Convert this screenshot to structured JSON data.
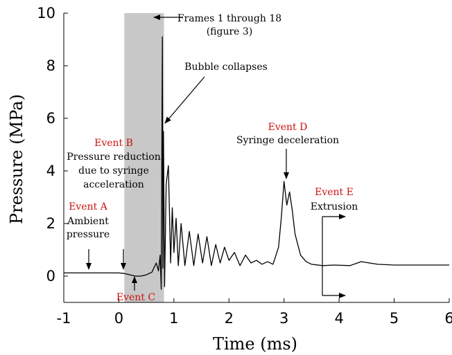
{
  "chart_data": {
    "type": "line",
    "xlabel": "Time (ms)",
    "ylabel": "Pressure (MPa)",
    "xlim": [
      -1,
      6
    ],
    "ylim": [
      -1,
      10
    ],
    "xticks": [
      -1,
      0,
      1,
      2,
      3,
      4,
      5,
      6
    ],
    "yticks": [
      0,
      2,
      4,
      6,
      8,
      10
    ],
    "grid": false,
    "shaded_region": {
      "x": [
        0.1,
        0.82
      ],
      "color": "#c8c8c8"
    },
    "series": [
      {
        "x": [
          -1.0,
          -0.5,
          0.0,
          0.1,
          0.2,
          0.3,
          0.4,
          0.5,
          0.6,
          0.68,
          0.72,
          0.75,
          0.77,
          0.79,
          0.8,
          0.81,
          0.83,
          0.86,
          0.9,
          0.94,
          0.97,
          1.0,
          1.04,
          1.08,
          1.13,
          1.2,
          1.28,
          1.36,
          1.44,
          1.52,
          1.6,
          1.68,
          1.76,
          1.84,
          1.92,
          2.0,
          2.1,
          2.2,
          2.3,
          2.4,
          2.5,
          2.6,
          2.7,
          2.8,
          2.9,
          2.95,
          3.0,
          3.05,
          3.1,
          3.15,
          3.2,
          3.3,
          3.4,
          3.5,
          3.7,
          3.9,
          4.2,
          4.4,
          4.7,
          5.0,
          5.5,
          6.0
        ],
        "y": [
          0.12,
          0.12,
          0.12,
          0.1,
          0.05,
          0.0,
          0.0,
          0.05,
          0.15,
          0.5,
          0.2,
          0.8,
          -0.5,
          9.1,
          0.3,
          5.5,
          -0.4,
          3.5,
          4.2,
          0.5,
          2.6,
          0.9,
          2.2,
          0.4,
          2.0,
          0.4,
          1.7,
          0.4,
          1.6,
          0.5,
          1.5,
          0.4,
          1.2,
          0.5,
          1.1,
          0.6,
          0.9,
          0.4,
          0.8,
          0.5,
          0.6,
          0.45,
          0.55,
          0.45,
          1.1,
          2.2,
          3.6,
          2.7,
          3.2,
          2.5,
          1.6,
          0.8,
          0.55,
          0.45,
          0.4,
          0.42,
          0.4,
          0.55,
          0.45,
          0.42,
          0.42,
          0.42
        ]
      }
    ],
    "annotations": [
      {
        "title": "Event A",
        "text": [
          "Ambient",
          "pressure"
        ]
      },
      {
        "title": "Event B",
        "text": [
          "Pressure reduction",
          "due to syringe",
          "acceleration"
        ]
      },
      {
        "title": "Event C",
        "text": []
      },
      {
        "title": "Event D",
        "text": [
          "Syringe deceleration"
        ]
      },
      {
        "title": "Event E",
        "text": [
          "Extrusion"
        ]
      },
      {
        "title": "",
        "text": [
          "Frames 1 through 18",
          "(figure 3)"
        ]
      },
      {
        "title": "",
        "text": [
          "Bubble collapses"
        ]
      }
    ]
  }
}
